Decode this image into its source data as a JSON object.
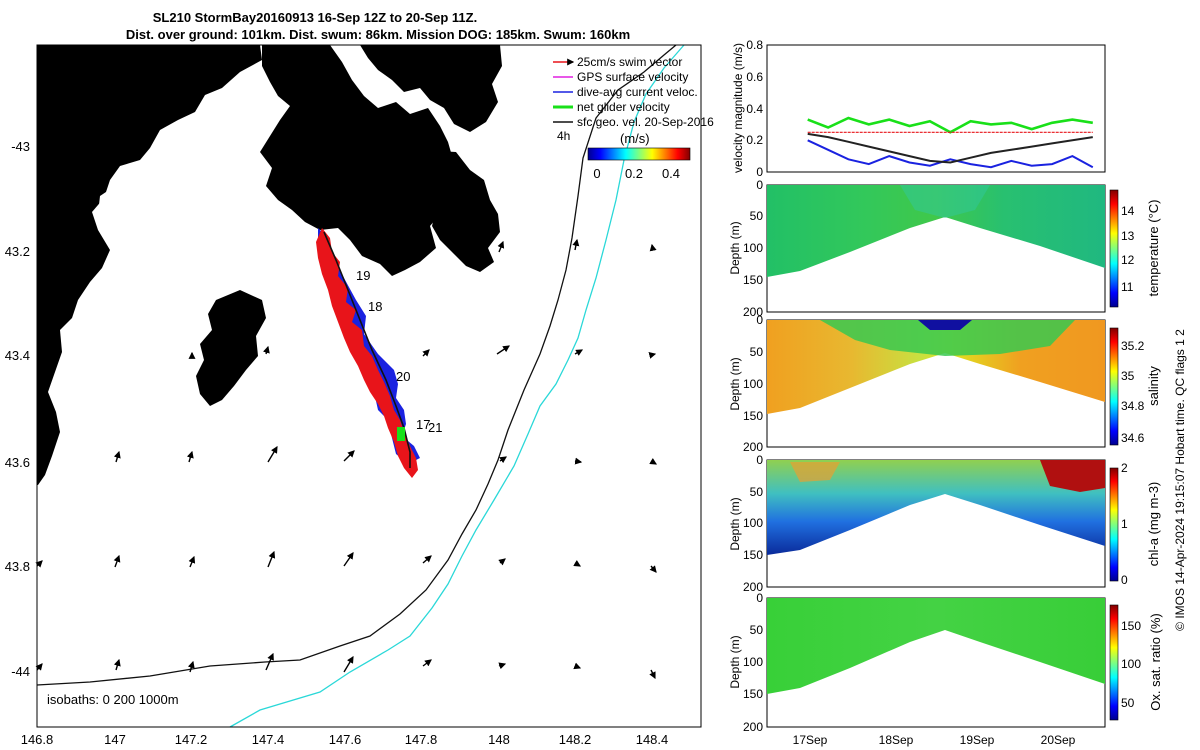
{
  "title": {
    "line1": "SL210 StormBay20160913 16-Sep 12Z to 20-Sep 11Z.",
    "line2": "Dist. over ground: 101km. Dist. swum: 86km. Mission DOG: 185km. Swum: 160km"
  },
  "map": {
    "x_ticks": [
      "146.8",
      "147",
      "147.2",
      "147.4",
      "147.6",
      "147.8",
      "148",
      "148.2",
      "148.4"
    ],
    "y_ticks": [
      "-43",
      "43.2",
      "43.4",
      "43.6",
      "43.8",
      "-44"
    ],
    "legend": [
      "25cm/s swim vector",
      "GPS surface velocity",
      "dive-avg current veloc.",
      "net glider velocity",
      "sfc geo. vel. 20-Sep-2016"
    ],
    "legend_colors": [
      "#e8141a",
      "#e020e0",
      "#1a22e0",
      "#19e019",
      "#111111"
    ],
    "colorbar_label": "(m/s)",
    "colorbar_ticks": [
      "0",
      "0.2",
      "0.4"
    ],
    "time_tag": "4h",
    "day_labels": [
      "19",
      "18",
      "20",
      "17",
      "21"
    ],
    "isobaths_label": "isobaths: 0   200  1000m",
    "land_color": "#f8c89b",
    "colors": {
      "isobath200": "#111111",
      "isobath1000": "#2ad8d8",
      "track": "#1a22e0",
      "swim": "#e8141a",
      "glider": "#19e019"
    }
  },
  "chart_data": [
    {
      "type": "line",
      "ylabel": "velocity magnitude (m/s)",
      "ylim": [
        0,
        0.8
      ],
      "yticks": [
        "0",
        "0.2",
        "0.4",
        "0.6",
        "0.8"
      ],
      "x": [
        17.0,
        17.25,
        17.5,
        17.75,
        18.0,
        18.25,
        18.5,
        18.75,
        19.0,
        19.25,
        19.5,
        19.75,
        20.0,
        20.25,
        20.5
      ],
      "series": [
        {
          "name": "net glider velocity",
          "color": "#19e019",
          "values": [
            0.33,
            0.28,
            0.34,
            0.3,
            0.33,
            0.29,
            0.32,
            0.25,
            0.32,
            0.3,
            0.31,
            0.27,
            0.31,
            0.33,
            0.31
          ]
        },
        {
          "name": "25cm/s swim vector",
          "color": "#e8141a",
          "values": [
            0.25,
            0.25,
            0.25,
            0.25,
            0.25,
            0.25,
            0.25,
            0.25,
            0.25,
            0.25,
            0.25,
            0.25,
            0.25,
            0.25,
            0.25
          ]
        },
        {
          "name": "dive-avg current veloc.",
          "color": "#1a22e0",
          "values": [
            0.2,
            0.14,
            0.08,
            0.05,
            0.1,
            0.06,
            0.04,
            0.08,
            0.05,
            0.03,
            0.07,
            0.04,
            0.05,
            0.1,
            0.03
          ]
        },
        {
          "name": "sfc geo. vel.",
          "color": "#222222",
          "values": [
            0.24,
            0.22,
            0.19,
            0.16,
            0.13,
            0.1,
            0.07,
            0.06,
            0.09,
            0.12,
            0.14,
            0.16,
            0.18,
            0.2,
            0.22
          ]
        }
      ]
    },
    {
      "type": "heatmap",
      "ylabel": "Depth (m)",
      "yticks": [
        "0",
        "50",
        "100",
        "150",
        "200"
      ],
      "colorbar_label": "temperature (°C)",
      "colorbar_ticks": [
        "11",
        "12",
        "13",
        "14"
      ],
      "clim": [
        10.6,
        14.8
      ]
    },
    {
      "type": "heatmap",
      "ylabel": "Depth (m)",
      "yticks": [
        "0",
        "50",
        "100",
        "150",
        "200"
      ],
      "colorbar_label": "salinity",
      "colorbar_ticks": [
        "34.6",
        "34.8",
        "35",
        "35.2"
      ],
      "clim": [
        34.5,
        35.3
      ]
    },
    {
      "type": "heatmap",
      "ylabel": "Depth (m)",
      "yticks": [
        "0",
        "50",
        "100",
        "150",
        "200"
      ],
      "colorbar_label": "chl-a (mg m-3)",
      "colorbar_ticks": [
        "0",
        "1",
        "2"
      ],
      "clim": [
        0,
        2
      ]
    },
    {
      "type": "heatmap",
      "ylabel": "Depth (m)",
      "yticks": [
        "0",
        "50",
        "100",
        "150",
        "200"
      ],
      "colorbar_label": "Ox. sat. ratio (%)",
      "colorbar_ticks": [
        "50",
        "100",
        "150"
      ],
      "clim": [
        25,
        175
      ]
    }
  ],
  "time_axis": [
    "17Sep",
    "18Sep",
    "19Sep",
    "20Sep"
  ],
  "footer": "© IMOS 14-Apr-2024 19:15:07 Hobart time. QC flags 1  2"
}
